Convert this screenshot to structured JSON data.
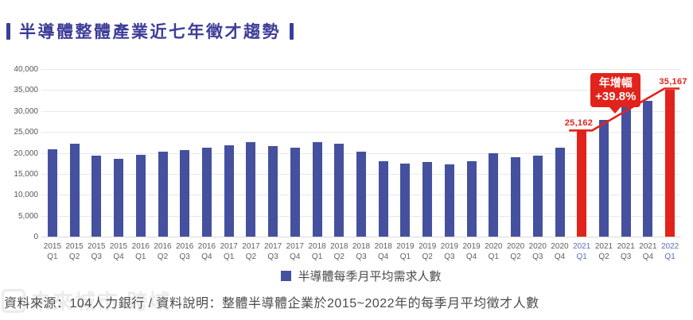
{
  "page": {
    "title": "半導體整體產業近七年徵才趨勢"
  },
  "chart_data": {
    "type": "bar",
    "title": "半導體整體產業近七年徵才趨勢",
    "xlabel": "",
    "ylabel": "",
    "ylim": [
      0,
      40000
    ],
    "ytick_step": 5000,
    "ytick_labels": [
      "0",
      "5,000",
      "10,000",
      "15,000",
      "20,000",
      "25,000",
      "30,000",
      "35,000",
      "40,000"
    ],
    "grid": true,
    "legend_position": "bottom",
    "series_name": "半導體每季月平均需求人數",
    "categories": [
      "2015 Q1",
      "2015 Q2",
      "2015 Q3",
      "2015 Q4",
      "2016 Q1",
      "2016 Q2",
      "2016 Q3",
      "2016 Q4",
      "2017 Q1",
      "2017 Q2",
      "2017 Q3",
      "2017 Q4",
      "2018 Q1",
      "2018 Q2",
      "2018 Q3",
      "2018 Q4",
      "2019 Q1",
      "2019 Q2",
      "2019 Q3",
      "2019 Q4",
      "2020 Q1",
      "2020 Q2",
      "2020 Q3",
      "2020 Q4",
      "2021 Q1",
      "2021 Q2",
      "2021 Q3",
      "2021 Q4",
      "2022 Q1"
    ],
    "values": [
      20800,
      22200,
      19400,
      18600,
      19600,
      20300,
      20600,
      21300,
      21900,
      22500,
      21700,
      21200,
      22500,
      22200,
      20300,
      18100,
      17400,
      17900,
      17200,
      18000,
      19900,
      18900,
      19300,
      21300,
      25162,
      27800,
      31200,
      32500,
      35167
    ],
    "highlight_indices": [
      24,
      28
    ],
    "bar_color": "#45509E",
    "highlight_color": "#E2231B",
    "annotation": {
      "from_index": 24,
      "to_index": 28,
      "start_value_label": "25,162",
      "end_value_label": "35,167",
      "box_line1": "年增幅",
      "box_line2": "+39.8%"
    }
  },
  "legend": {
    "label": "半導體每季月平均需求人數",
    "swatch_color": "#45509E"
  },
  "footer": {
    "text": "資料來源：104人力銀行 / 資料說明：整體半導體企業於2015~2022年的每季月平均徵才人數"
  },
  "watermark": {
    "text": "未來城市 跨域"
  },
  "colors": {
    "title": "#3D3D99",
    "bar_blue": "#45509E",
    "accent_red": "#E2231B",
    "axis_text": "#55565E",
    "x_label": "#5F5F5F",
    "x_label_highlight": "#5A6DC0",
    "gridline": "#E8E8E8",
    "footer_text": "#4A4A4A"
  }
}
